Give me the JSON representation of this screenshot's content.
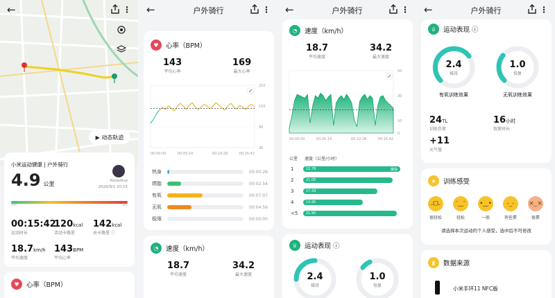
{
  "panel1": {
    "map_button": "▶ 动态轨迹",
    "summary": {
      "title": "小米运动健康 | 户外骑行",
      "distance": "4.9",
      "distance_unit": "公里",
      "user": "Nosedive",
      "datetime": "2026/9/1 20:15",
      "effort_left": "轻松",
      "effort_right": "极限",
      "metrics": [
        {
          "value": "00:15:42",
          "unit": "",
          "label": "运动时长"
        },
        {
          "value": "120",
          "unit": "kcal",
          "label": "活动卡路里"
        },
        {
          "value": "142",
          "unit": "kcal",
          "label": "总卡路里 ⓘ"
        },
        {
          "value": "18.7",
          "unit": "km/h",
          "label": "平均速度"
        },
        {
          "value": "143",
          "unit": "BPM",
          "label": "平均心率"
        }
      ]
    },
    "hr_title": "心率（BPM）"
  },
  "panel2": {
    "title": "户外骑行",
    "hr": {
      "title": "心率（BPM）",
      "avg": "143",
      "avg_label": "平均心率",
      "max": "169",
      "max_label": "最大心率"
    },
    "zones": [
      {
        "name": "热身",
        "time": "00:00:26",
        "fraction": 0.03,
        "color": "#3aa7e0"
      },
      {
        "name": "燃脂",
        "time": "00:02:54",
        "fraction": 0.18,
        "color": "#38c172"
      },
      {
        "name": "有氧",
        "time": "00:07:07",
        "fraction": 0.46,
        "color": "#f5b21b"
      },
      {
        "name": "无氧",
        "time": "00:04:59",
        "fraction": 0.32,
        "color": "#ee8a1f"
      },
      {
        "name": "极限",
        "time": "00:00:00",
        "fraction": 0.0,
        "color": "#e84c3d"
      }
    ],
    "speed": {
      "title": "速度（km/h）",
      "avg": "18.7",
      "avg_label": "平均速度",
      "max": "34.2",
      "max_label": "最大速度"
    }
  },
  "panel3": {
    "title": "户外骑行",
    "speed": {
      "title": "速度（km/h）",
      "avg": "18.7",
      "avg_label": "平均速度",
      "max": "34.2",
      "max_label": "最大速度"
    },
    "splits_head_km": "公里",
    "splits_head_speed": "速度（公里/小时）",
    "splits": [
      {
        "km": "1",
        "speed": 22.78,
        "label": "22.78",
        "badge": "最快"
      },
      {
        "km": "2",
        "speed": 21.05,
        "label": "21.05",
        "badge": ""
      },
      {
        "km": "3",
        "speed": 17.39,
        "label": "17.39",
        "badge": ""
      },
      {
        "km": "4",
        "speed": 13.95,
        "label": "13.95",
        "badge": ""
      },
      {
        "km": "<5",
        "speed": 21.95,
        "label": "21.95",
        "badge": ""
      }
    ],
    "perf_title": "运动表现 ⓘ",
    "aerobic": "2.4",
    "aerobic_label": "维持",
    "anaerobic": "1.0",
    "anaerobic_label": "恢复"
  },
  "panel4": {
    "title": "户外骑行",
    "perf_title": "运动表现 ⓘ",
    "aerobic": "2.4",
    "aerobic_label": "维持",
    "aerobic_caption": "有氧训练效果",
    "anaerobic": "1.0",
    "anaerobic_label": "恢复",
    "anaerobic_caption": "无氧训练效果",
    "load": "24",
    "load_unit": "TL",
    "load_label": "训练负荷",
    "recovery": "16",
    "recovery_unit": "小时",
    "recovery_label": "恢复时长",
    "vo2": "+11",
    "vo2_label": "元气值",
    "feel_title": "训练感受",
    "feelings": [
      "很轻松",
      "轻松",
      "一般",
      "有些累",
      "很累"
    ],
    "feel_prompt": "请选择本次运动的个人感受，选中后不可修改",
    "source_title": "数据来源",
    "device": "小米手环11 NFC版"
  },
  "chart_data": [
    {
      "type": "line",
      "title": "心率（BPM）",
      "x_ticks": [
        "00:00:00",
        "00:05:14",
        "00:10:28",
        "00:15:42"
      ],
      "y_ticks": [
        210,
        150,
        90,
        30
      ],
      "ylim": [
        30,
        210
      ],
      "average_line": 143,
      "values": [
        100,
        112,
        128,
        138,
        146,
        140,
        150,
        144,
        135,
        148,
        158,
        150,
        140,
        152,
        160,
        148,
        140,
        147,
        155,
        150,
        142,
        150,
        160,
        152,
        145,
        138,
        150,
        158,
        148,
        140,
        152,
        146,
        140,
        150,
        155,
        148
      ]
    },
    {
      "type": "area",
      "title": "速度（km/h）",
      "x_ticks": [
        "00:00:00",
        "00:05:14",
        "00:10:28",
        "00:15:42"
      ],
      "y_ticks": [
        50,
        30,
        10,
        0
      ],
      "ylim": [
        0,
        50
      ],
      "average_line": 18.7,
      "values": [
        4,
        14,
        26,
        31,
        30,
        29,
        28,
        31,
        8,
        22,
        30,
        28,
        32,
        30,
        26,
        29,
        31,
        6,
        24,
        28,
        30,
        27,
        31,
        28,
        24,
        10,
        5,
        25,
        29,
        31,
        27,
        30,
        28,
        6,
        22,
        29,
        30,
        26,
        24,
        22,
        20
      ]
    }
  ]
}
